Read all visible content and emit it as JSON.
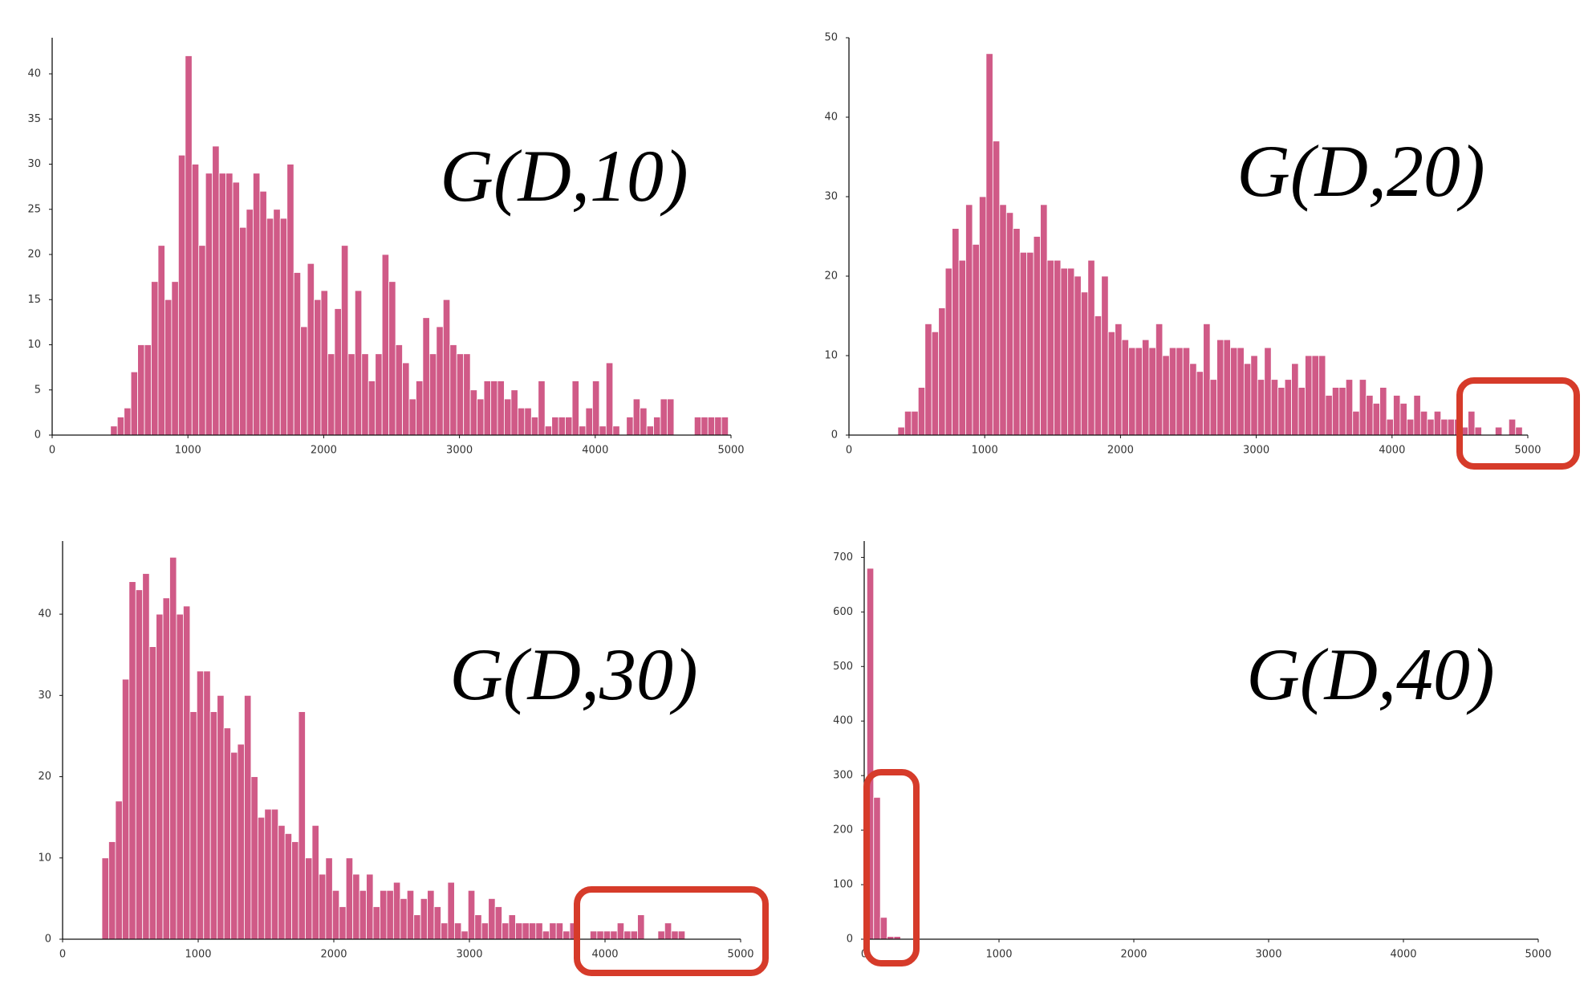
{
  "chart_data": [
    {
      "type": "histogram",
      "annotation": "G(D,10)",
      "color": "#d05a87",
      "bins": [
        430,
        480,
        530,
        580,
        630,
        680,
        730,
        780,
        830,
        880,
        930,
        980,
        1030,
        1080,
        1130,
        1180,
        1230,
        1280,
        1330,
        1380,
        1430,
        1480,
        1530,
        1580,
        1630,
        1680,
        1730,
        1780,
        1830,
        1880,
        1930,
        1980,
        2030,
        2080,
        2130,
        2180,
        2230,
        2280,
        2330,
        2380,
        2430,
        2480,
        2530,
        2580,
        2630,
        2680,
        2730,
        2780,
        2830,
        2880,
        2930,
        2980,
        3030,
        3080,
        3130,
        3180,
        3230,
        3280,
        3330,
        3380,
        3430,
        3480,
        3530,
        3580,
        3630,
        3680,
        3730,
        3780,
        3830,
        3880,
        3930,
        3980,
        4030,
        4080,
        4130,
        4180,
        4230,
        4280,
        4330,
        4380,
        4430,
        4480,
        4530,
        4580,
        4630,
        4680,
        4730,
        4780,
        4830,
        4880,
        4930,
        4980
      ],
      "values": [
        1,
        2,
        3,
        7,
        10,
        10,
        17,
        21,
        15,
        17,
        31,
        42,
        30,
        21,
        29,
        32,
        29,
        29,
        28,
        23,
        25,
        29,
        27,
        24,
        25,
        24,
        30,
        18,
        12,
        19,
        15,
        16,
        9,
        14,
        21,
        9,
        16,
        9,
        6,
        9,
        20,
        17,
        10,
        8,
        4,
        6,
        13,
        9,
        12,
        15,
        10,
        9,
        9,
        5,
        4,
        6,
        6,
        6,
        4,
        5,
        3,
        3,
        2,
        6,
        1,
        2,
        2,
        2,
        6,
        1,
        3,
        6,
        1,
        8,
        1,
        0,
        2,
        4,
        3,
        1,
        2,
        4,
        4,
        0,
        0,
        0,
        2,
        2,
        2,
        2,
        2
      ],
      "xlim": [
        0,
        5000
      ],
      "xticks": [
        0,
        1000,
        2000,
        3000,
        4000,
        5000
      ],
      "ylim": [
        0,
        44
      ],
      "yticks": [
        0,
        5,
        10,
        15,
        20,
        25,
        30,
        35,
        40
      ]
    },
    {
      "type": "histogram",
      "annotation": "G(D,20)",
      "color": "#d05a87",
      "bins": [
        360,
        410,
        460,
        510,
        560,
        610,
        660,
        710,
        760,
        810,
        860,
        910,
        960,
        1010,
        1060,
        1110,
        1160,
        1210,
        1260,
        1310,
        1360,
        1410,
        1460,
        1510,
        1560,
        1610,
        1660,
        1710,
        1760,
        1810,
        1860,
        1910,
        1960,
        2010,
        2060,
        2110,
        2160,
        2210,
        2260,
        2310,
        2360,
        2410,
        2460,
        2510,
        2560,
        2610,
        2660,
        2710,
        2760,
        2810,
        2860,
        2910,
        2960,
        3010,
        3060,
        3110,
        3160,
        3210,
        3260,
        3310,
        3360,
        3410,
        3460,
        3510,
        3560,
        3610,
        3660,
        3710,
        3760,
        3810,
        3860,
        3910,
        3960,
        4010,
        4060,
        4110,
        4160,
        4210,
        4260,
        4310,
        4360,
        4410,
        4460,
        4510,
        4560,
        4610,
        4660,
        4710,
        4760,
        4810,
        4860,
        4910,
        4960
      ],
      "values": [
        1,
        3,
        3,
        6,
        14,
        13,
        16,
        21,
        26,
        22,
        29,
        24,
        30,
        48,
        37,
        29,
        28,
        26,
        23,
        23,
        25,
        29,
        22,
        22,
        21,
        21,
        20,
        18,
        22,
        15,
        20,
        13,
        14,
        12,
        11,
        11,
        12,
        11,
        14,
        10,
        11,
        11,
        11,
        9,
        8,
        14,
        7,
        12,
        12,
        11,
        11,
        9,
        10,
        7,
        11,
        7,
        6,
        7,
        9,
        6,
        10,
        10,
        10,
        5,
        6,
        6,
        7,
        3,
        7,
        5,
        4,
        6,
        2,
        5,
        4,
        2,
        5,
        3,
        2,
        3,
        2,
        2,
        2,
        1,
        3,
        1,
        0,
        0,
        1,
        0,
        2,
        1
      ],
      "xlim": [
        0,
        5000
      ],
      "xticks": [
        0,
        1000,
        2000,
        3000,
        4000,
        5000
      ],
      "ylim": [
        0,
        50
      ],
      "yticks": [
        0,
        10,
        20,
        30,
        40,
        50
      ]
    },
    {
      "type": "histogram",
      "annotation": "G(D,30)",
      "color": "#d05a87",
      "bins": [
        290,
        340,
        390,
        440,
        490,
        540,
        590,
        640,
        690,
        740,
        790,
        840,
        890,
        940,
        990,
        1040,
        1090,
        1140,
        1190,
        1240,
        1290,
        1340,
        1390,
        1440,
        1490,
        1540,
        1590,
        1640,
        1690,
        1740,
        1790,
        1840,
        1890,
        1940,
        1990,
        2040,
        2090,
        2140,
        2190,
        2240,
        2290,
        2340,
        2390,
        2440,
        2490,
        2540,
        2590,
        2640,
        2690,
        2740,
        2790,
        2840,
        2890,
        2940,
        2990,
        3040,
        3090,
        3140,
        3190,
        3240,
        3290,
        3340,
        3390,
        3440,
        3490,
        3540,
        3590,
        3640,
        3690,
        3740,
        3790,
        3840,
        3890,
        3940,
        3990,
        4040,
        4090,
        4140,
        4190,
        4240,
        4290,
        4340,
        4390,
        4440,
        4490,
        4540,
        4590
      ],
      "values": [
        10,
        12,
        17,
        32,
        44,
        43,
        45,
        36,
        40,
        42,
        47,
        40,
        41,
        28,
        33,
        33,
        28,
        30,
        26,
        23,
        24,
        30,
        20,
        15,
        16,
        16,
        14,
        13,
        12,
        28,
        10,
        14,
        8,
        10,
        6,
        4,
        10,
        8,
        6,
        8,
        4,
        6,
        6,
        7,
        5,
        6,
        3,
        5,
        6,
        4,
        2,
        7,
        2,
        1,
        6,
        3,
        2,
        5,
        4,
        2,
        3,
        2,
        2,
        2,
        2,
        1,
        2,
        2,
        1,
        2,
        0,
        0,
        1,
        1,
        1,
        1,
        2,
        1,
        1,
        3,
        0,
        0,
        1,
        2,
        1,
        1
      ],
      "xlim": [
        0,
        5000
      ],
      "xticks": [
        0,
        1000,
        2000,
        3000,
        4000,
        5000
      ],
      "ylim": [
        0,
        49
      ],
      "yticks": [
        0,
        10,
        20,
        30,
        40
      ]
    },
    {
      "type": "histogram",
      "annotation": "G(D,40)",
      "color": "#d05a87",
      "bins": [
        20,
        70,
        120,
        170,
        220,
        270
      ],
      "values": [
        680,
        260,
        40,
        5,
        5
      ],
      "xlim": [
        0,
        5000
      ],
      "xticks": [
        0,
        1000,
        2000,
        3000,
        4000,
        5000
      ],
      "ylim": [
        0,
        730
      ],
      "yticks": [
        0,
        100,
        200,
        300,
        400,
        500,
        600,
        700
      ]
    }
  ]
}
